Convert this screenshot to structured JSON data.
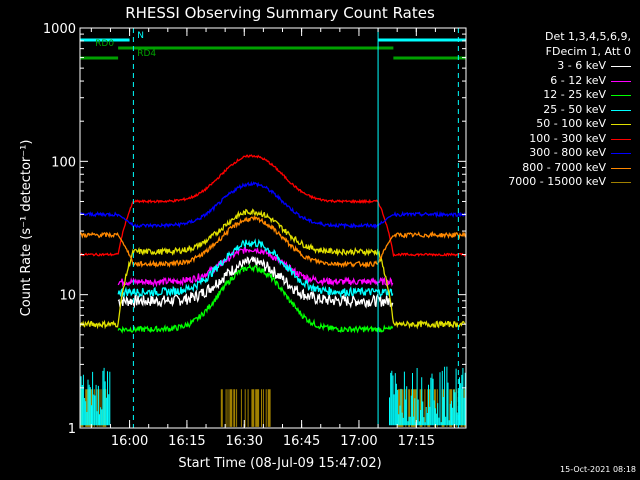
{
  "chart_data": {
    "type": "line",
    "title": "RHESSI Observing Summary Count Rates",
    "xlabel": "Start Time (08-Jul-09 15:47:02)",
    "ylabel": "Count Rate (s⁻¹ detector⁻¹)",
    "yscale": "log",
    "ylim": [
      1,
      1000
    ],
    "xlim": [
      "15:47:02",
      "17:28:00"
    ],
    "x_ticks": [
      "16:00",
      "16:15",
      "16:30",
      "16:45",
      "17:00",
      "17:15"
    ],
    "y_ticks": [
      "1",
      "10",
      "100",
      "1000"
    ],
    "legend_header": [
      "Det 1,3,4,5,6,9,",
      "FDecim 1, Att 0"
    ],
    "series": [
      {
        "name": "3 - 6 keV",
        "color": "#ffffff",
        "base": 9.0,
        "peak": 17.5,
        "wings": null,
        "noise": 0.1
      },
      {
        "name": "6 - 12 keV",
        "color": "#ff00ff",
        "base": 12.5,
        "peak": 22.0,
        "wings": null,
        "noise": 0.06
      },
      {
        "name": "12 - 25 keV",
        "color": "#00ff00",
        "base": 5.5,
        "peak": 16.0,
        "wings": null,
        "noise": 0.05
      },
      {
        "name": "25 - 50 keV",
        "color": "#00ffff",
        "base": 10.5,
        "peak": 24.5,
        "wings": null,
        "noise": 0.07
      },
      {
        "name": "50 - 100 keV",
        "color": "#e0e000",
        "base": 21.0,
        "peak": 42.0,
        "wings": 6.0,
        "noise": 0.05
      },
      {
        "name": "100 - 300 keV",
        "color": "#ff0000",
        "base": 50.0,
        "peak": 110.0,
        "wings": 20.0,
        "noise": 0.02
      },
      {
        "name": "300 - 800 keV",
        "color": "#0000ff",
        "base": 33.0,
        "peak": 68.0,
        "wings": 40.0,
        "noise": 0.03
      },
      {
        "name": "800 - 7000 keV",
        "color": "#ff8800",
        "base": 17.0,
        "peak": 37.0,
        "wings": 28.0,
        "noise": 0.04
      },
      {
        "name": "7000 - 15000 keV",
        "color": "#a08000",
        "base": 1.0,
        "peak": 1.0,
        "wings": 1.0,
        "noise": 0.0
      }
    ],
    "flags": [
      {
        "name": "N",
        "color": "#00ffff",
        "intervals": [
          [
            "15:47",
            "16:00"
          ],
          [
            "17:05",
            "17:28"
          ]
        ]
      },
      {
        "name": "RD0",
        "color": "#00a000",
        "intervals": [
          [
            "15:57",
            "17:09"
          ]
        ]
      },
      {
        "name": "RD4",
        "color": "#00a000",
        "intervals": [
          [
            "15:47",
            "15:57"
          ],
          [
            "17:09",
            "17:28"
          ]
        ]
      }
    ],
    "vlines": [
      "16:01",
      "17:05",
      "17:26"
    ]
  },
  "footer": {
    "timestamp": "15-Oct-2021 08:18"
  }
}
